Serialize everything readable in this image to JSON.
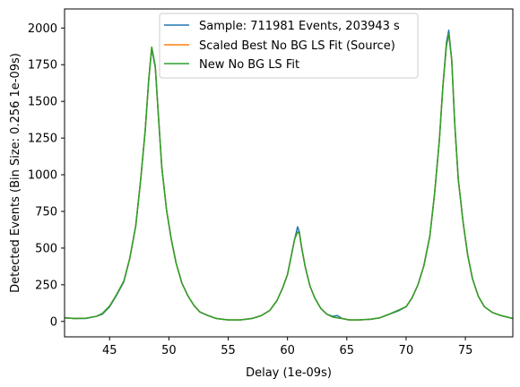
{
  "chart_data": {
    "type": "line",
    "xlabel": "Delay (1e-09s)",
    "ylabel": "Detected Events (Bin Size: 0.256 1e-09s)",
    "xlim": [
      41.2,
      79.0
    ],
    "ylim": [
      -105,
      2130
    ],
    "xticks": [
      45,
      50,
      55,
      60,
      65,
      70,
      75
    ],
    "yticks": [
      0,
      250,
      500,
      750,
      1000,
      1250,
      1500,
      1750,
      2000
    ],
    "grid": false,
    "legend_position": "top-center",
    "series": [
      {
        "name": "Sample: 711981 Events, 203943 s",
        "color": "#1f77b4",
        "x": [
          41.2,
          42.0,
          43.0,
          43.9,
          44.4,
          45.0,
          45.6,
          46.2,
          46.7,
          47.2,
          47.6,
          48.0,
          48.3,
          48.55,
          48.85,
          49.1,
          49.4,
          49.8,
          50.2,
          50.6,
          51.1,
          51.6,
          52.1,
          52.6,
          53.3,
          54.0,
          55.0,
          56.0,
          57.0,
          57.8,
          58.5,
          59.1,
          59.6,
          60.0,
          60.3,
          60.6,
          60.85,
          61.0,
          61.2,
          61.5,
          61.9,
          62.3,
          62.8,
          63.3,
          63.8,
          64.2,
          64.6,
          65.2,
          66.0,
          67.0,
          67.8,
          68.6,
          69.3,
          70.0,
          70.5,
          71.0,
          71.5,
          72.0,
          72.4,
          72.8,
          73.1,
          73.4,
          73.6,
          73.85,
          74.1,
          74.4,
          74.8,
          75.2,
          75.6,
          76.1,
          76.6,
          77.3,
          78.0,
          78.5,
          79.0
        ],
        "y": [
          25,
          20,
          20,
          35,
          50,
          100,
          180,
          270,
          430,
          650,
          950,
          1300,
          1650,
          1860,
          1730,
          1420,
          1050,
          760,
          560,
          400,
          260,
          175,
          110,
          65,
          40,
          20,
          10,
          10,
          20,
          40,
          75,
          140,
          230,
          320,
          440,
          560,
          645,
          610,
          500,
          370,
          240,
          160,
          90,
          50,
          35,
          40,
          20,
          10,
          10,
          15,
          25,
          50,
          70,
          100,
          160,
          250,
          380,
          580,
          870,
          1230,
          1600,
          1900,
          1985,
          1780,
          1350,
          970,
          680,
          450,
          290,
          170,
          100,
          60,
          40,
          30,
          20
        ]
      },
      {
        "name": "Scaled Best No BG LS Fit (Source)",
        "color": "#ff7f0e",
        "x": [
          41.2,
          42.0,
          43.0,
          43.9,
          44.4,
          45.0,
          45.6,
          46.2,
          46.7,
          47.2,
          47.6,
          48.0,
          48.3,
          48.55,
          48.85,
          49.1,
          49.4,
          49.8,
          50.2,
          50.6,
          51.1,
          51.6,
          52.1,
          52.6,
          53.3,
          54.0,
          55.0,
          56.0,
          57.0,
          57.8,
          58.5,
          59.1,
          59.6,
          60.0,
          60.3,
          60.6,
          60.85,
          61.0,
          61.2,
          61.5,
          61.9,
          62.3,
          62.8,
          63.3,
          63.8,
          64.2,
          64.6,
          65.2,
          66.0,
          67.0,
          67.8,
          68.6,
          69.3,
          70.0,
          70.5,
          71.0,
          71.5,
          72.0,
          72.4,
          72.8,
          73.1,
          73.4,
          73.6,
          73.85,
          74.1,
          74.4,
          74.8,
          75.2,
          75.6,
          76.1,
          76.6,
          77.3,
          78.0,
          78.5,
          79.0
        ],
        "y": [
          25,
          20,
          22,
          35,
          55,
          105,
          185,
          275,
          430,
          650,
          950,
          1300,
          1650,
          1870,
          1740,
          1420,
          1050,
          760,
          560,
          400,
          260,
          175,
          110,
          65,
          40,
          20,
          10,
          10,
          20,
          40,
          75,
          140,
          230,
          320,
          440,
          560,
          610,
          600,
          500,
          370,
          240,
          160,
          90,
          50,
          30,
          25,
          20,
          10,
          10,
          15,
          25,
          50,
          75,
          100,
          160,
          250,
          380,
          580,
          870,
          1230,
          1600,
          1880,
          1960,
          1780,
          1350,
          970,
          680,
          450,
          290,
          170,
          100,
          60,
          40,
          30,
          20
        ]
      },
      {
        "name": "New No BG LS Fit",
        "color": "#2ca02c",
        "x": [
          41.2,
          42.0,
          43.0,
          43.9,
          44.4,
          45.0,
          45.6,
          46.2,
          46.7,
          47.2,
          47.6,
          48.0,
          48.3,
          48.55,
          48.85,
          49.1,
          49.4,
          49.8,
          50.2,
          50.6,
          51.1,
          51.6,
          52.1,
          52.6,
          53.3,
          54.0,
          55.0,
          56.0,
          57.0,
          57.8,
          58.5,
          59.1,
          59.6,
          60.0,
          60.3,
          60.6,
          60.85,
          61.0,
          61.2,
          61.5,
          61.9,
          62.3,
          62.8,
          63.3,
          63.8,
          64.2,
          64.6,
          65.2,
          66.0,
          67.0,
          67.8,
          68.6,
          69.3,
          70.0,
          70.5,
          71.0,
          71.5,
          72.0,
          72.4,
          72.8,
          73.1,
          73.4,
          73.6,
          73.85,
          74.1,
          74.4,
          74.8,
          75.2,
          75.6,
          76.1,
          76.6,
          77.3,
          78.0,
          78.5,
          79.0
        ],
        "y": [
          25,
          20,
          22,
          35,
          55,
          105,
          185,
          275,
          430,
          650,
          950,
          1300,
          1650,
          1870,
          1740,
          1420,
          1050,
          760,
          560,
          400,
          260,
          175,
          110,
          65,
          40,
          20,
          10,
          10,
          20,
          40,
          75,
          140,
          230,
          320,
          440,
          560,
          610,
          600,
          500,
          370,
          240,
          160,
          90,
          50,
          30,
          25,
          20,
          10,
          10,
          15,
          25,
          50,
          75,
          100,
          160,
          250,
          380,
          580,
          870,
          1230,
          1600,
          1880,
          1960,
          1780,
          1350,
          970,
          680,
          450,
          290,
          170,
          100,
          60,
          40,
          30,
          20
        ]
      }
    ]
  }
}
